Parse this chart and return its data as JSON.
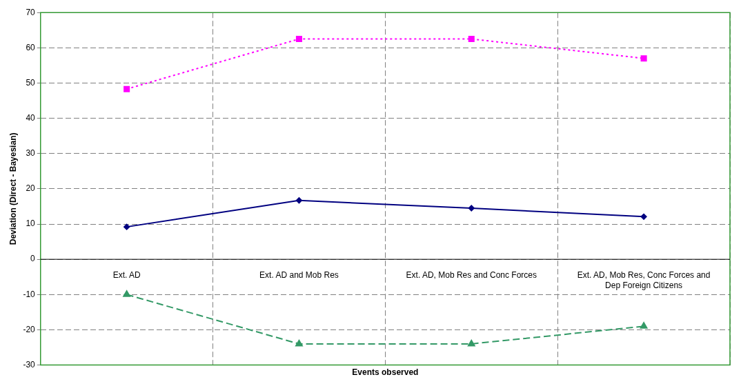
{
  "chart_data": {
    "type": "line",
    "xlabel": "Events observed",
    "ylabel": "Deviation (Direct - Bayesian)",
    "categories": [
      "Ext. AD",
      "Ext. AD and Mob Res",
      "Ext. AD, Mob Res and Conc Forces",
      "Ext. AD, Mob Res, Conc Forces and Dep Foreign Citizens"
    ],
    "series": [
      {
        "color": "#ff00ff",
        "values": [
          48.3,
          62.5,
          62.5,
          57
        ],
        "marker": "square",
        "line_style": "dotted"
      },
      {
        "color": "#000080",
        "values": [
          9.2,
          16.7,
          14.5,
          12.1
        ],
        "marker": "diamond",
        "line_style": "solid"
      },
      {
        "color": "#339966",
        "values": [
          -10,
          -24,
          -24,
          -19
        ],
        "marker": "triangle",
        "line_style": "dashed"
      }
    ],
    "ylim": [
      -30,
      70
    ],
    "yticks": [
      -30,
      -20,
      -10,
      0,
      10,
      20,
      30,
      40,
      50,
      60,
      70
    ],
    "grid": true,
    "legend": false
  }
}
